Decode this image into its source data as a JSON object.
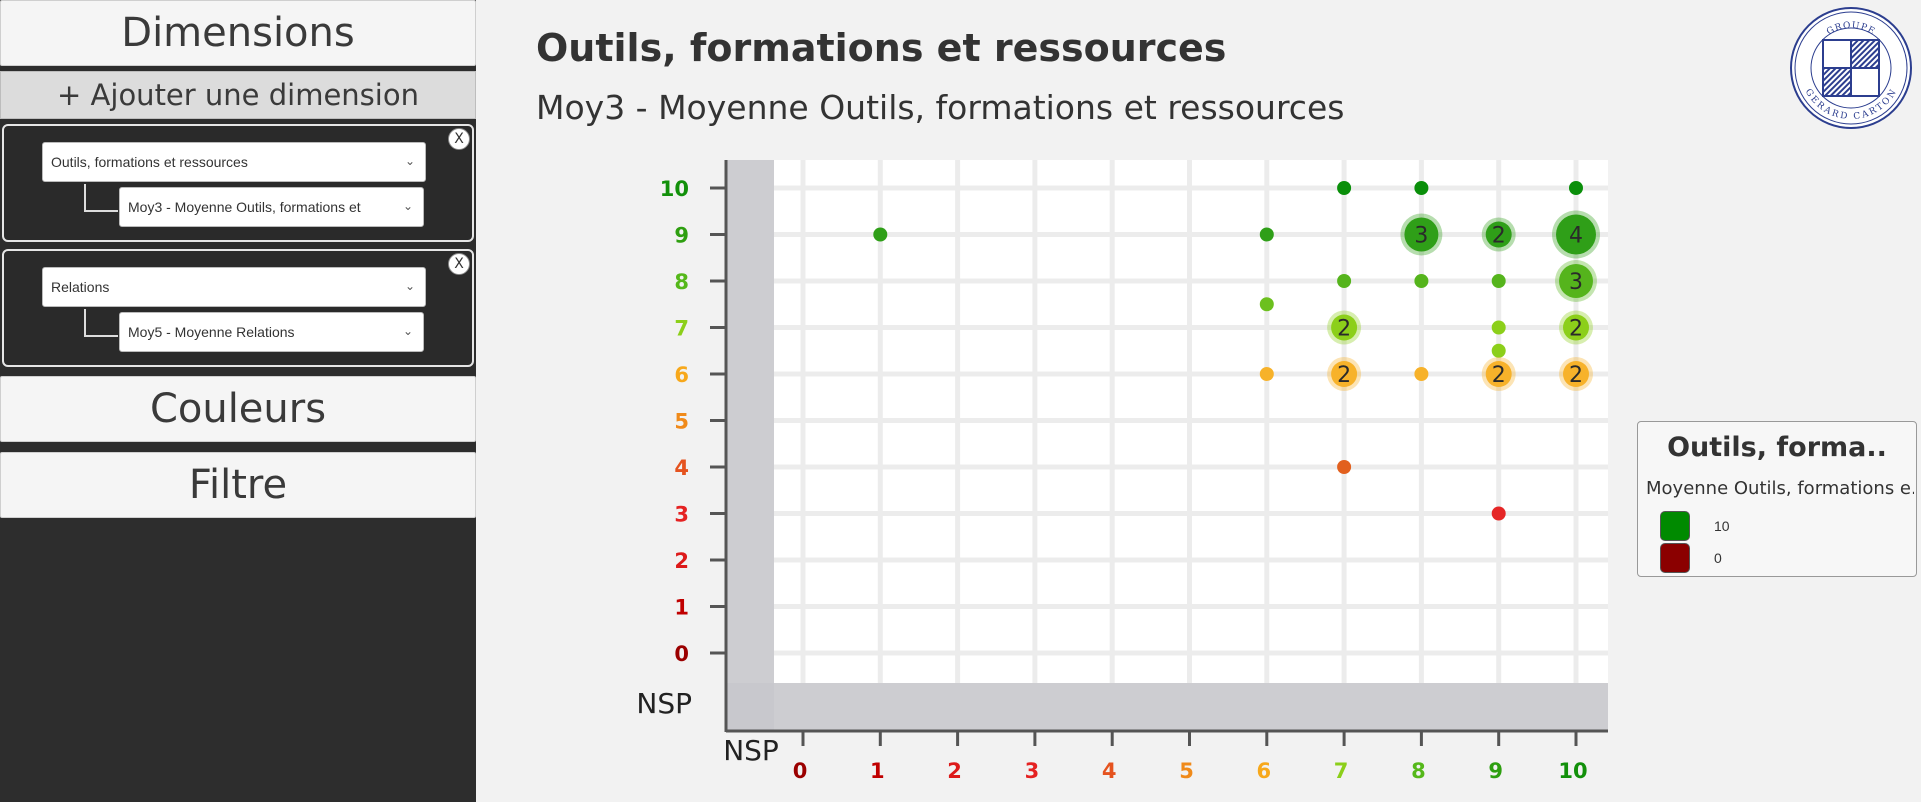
{
  "sidebar": {
    "dimensions_title": "Dimensions",
    "add_dimension": "+ Ajouter une dimension",
    "dimension_1": {
      "main": "Outils, formations et ressources",
      "sub": "Moy3 - Moyenne Outils, formations et"
    },
    "dimension_2": {
      "main": "Relations",
      "sub": "Moy5 - Moyenne Relations"
    },
    "close_label": "X",
    "colors_title": "Couleurs",
    "filter_title": "Filtre"
  },
  "header": {
    "title": "Outils, formations et ressources",
    "subtitle": "Moy3 - Moyenne Outils, formations et ressources"
  },
  "logo": {
    "top_text": "GROUPE",
    "bottom_text": "GERARD CARTON"
  },
  "legend": {
    "title": "Outils, forma..",
    "subtitle": "Moyenne Outils, formations e..",
    "items": [
      {
        "label": "10",
        "color": "#008a00"
      },
      {
        "label": "0",
        "color": "#8b0000"
      }
    ]
  },
  "chart_data": {
    "type": "scatter",
    "x_ticks": [
      "NSP",
      "0",
      "1",
      "2",
      "3",
      "4",
      "5",
      "6",
      "7",
      "8",
      "9",
      "10"
    ],
    "y_ticks": [
      "NSP",
      "0",
      "1",
      "2",
      "3",
      "4",
      "5",
      "6",
      "7",
      "8",
      "9",
      "10"
    ],
    "tick_colors": {
      "0": "#9b0000",
      "1": "#c00000",
      "2": "#dd1a1a",
      "3": "#e52222",
      "4": "#e5531f",
      "5": "#f08a1a",
      "6": "#f7a81b",
      "7": "#8ccf1a",
      "8": "#55b81a",
      "9": "#2e9f10",
      "10": "#12900a"
    },
    "points": [
      {
        "x": 7,
        "y": 10,
        "count": 1
      },
      {
        "x": 8,
        "y": 10,
        "count": 1
      },
      {
        "x": 10,
        "y": 10,
        "count": 1
      },
      {
        "x": 1,
        "y": 9,
        "count": 1
      },
      {
        "x": 6,
        "y": 9,
        "count": 1
      },
      {
        "x": 8,
        "y": 9,
        "count": 3
      },
      {
        "x": 9,
        "y": 9,
        "count": 2
      },
      {
        "x": 10,
        "y": 9,
        "count": 4
      },
      {
        "x": 7,
        "y": 8,
        "count": 1
      },
      {
        "x": 8,
        "y": 8,
        "count": 1
      },
      {
        "x": 9,
        "y": 8,
        "count": 1
      },
      {
        "x": 10,
        "y": 8,
        "count": 3
      },
      {
        "x": 6,
        "y": 7.5,
        "count": 1
      },
      {
        "x": 7,
        "y": 7,
        "count": 2
      },
      {
        "x": 9,
        "y": 7,
        "count": 1
      },
      {
        "x": 10,
        "y": 7,
        "count": 2
      },
      {
        "x": 9,
        "y": 6.5,
        "count": 1
      },
      {
        "x": 6,
        "y": 6,
        "count": 1
      },
      {
        "x": 7,
        "y": 6,
        "count": 2
      },
      {
        "x": 8,
        "y": 6,
        "count": 1
      },
      {
        "x": 9,
        "y": 6,
        "count": 2
      },
      {
        "x": 10,
        "y": 6,
        "count": 2
      },
      {
        "x": 7,
        "y": 4,
        "count": 1
      },
      {
        "x": 9,
        "y": 3,
        "count": 1
      }
    ],
    "grid": true
  }
}
